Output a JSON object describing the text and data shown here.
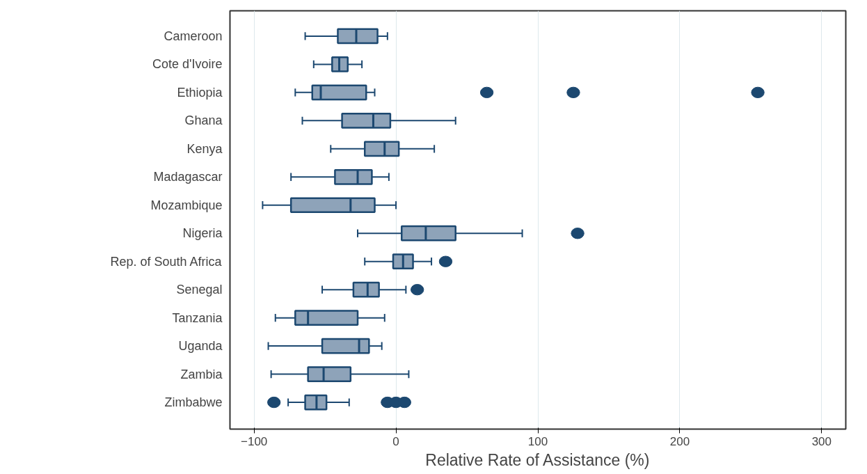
{
  "chart_data": {
    "type": "box",
    "orientation": "horizontal",
    "xlabel": "Relative Rate of Assistance (%)",
    "color": "#8ea3b9",
    "grid": "x",
    "categories": [
      "Cameroon",
      "Cote d'Ivoire",
      "Ethiopia",
      "Ghana",
      "Kenya",
      "Madagascar",
      "Mozambique",
      "Nigeria",
      "Rep. of South Africa",
      "Senegal",
      "Tanzania",
      "Uganda",
      "Zambia",
      "Zimbabwe"
    ],
    "boxes": [
      {
        "low": -64,
        "q1": -41,
        "median": -28,
        "q3": -13,
        "high": -6
      },
      {
        "low": -58,
        "q1": -45,
        "median": -40,
        "q3": -34,
        "high": -24
      },
      {
        "low": -71,
        "q1": -59,
        "median": -53,
        "q3": -21,
        "high": -15,
        "outliers": [
          64,
          125,
          255
        ]
      },
      {
        "low": -66,
        "q1": -38,
        "median": -16,
        "q3": -4,
        "high": 42
      },
      {
        "low": -46,
        "q1": -22,
        "median": -8,
        "q3": 2,
        "high": 27
      },
      {
        "low": -74,
        "q1": -43,
        "median": -27,
        "q3": -17,
        "high": -5
      },
      {
        "low": -94,
        "q1": -74,
        "median": -32,
        "q3": -15,
        "high": 0
      },
      {
        "low": -27,
        "q1": 4,
        "median": 21,
        "q3": 42,
        "high": 89,
        "outliers": [
          128
        ]
      },
      {
        "low": -22,
        "q1": -2,
        "median": 5,
        "q3": 12,
        "high": 25,
        "outliers": [
          35
        ]
      },
      {
        "low": -52,
        "q1": -30,
        "median": -20,
        "q3": -12,
        "high": 7,
        "outliers": [
          15
        ]
      },
      {
        "low": -85,
        "q1": -71,
        "median": -62,
        "q3": -27,
        "high": -8
      },
      {
        "low": -90,
        "q1": -52,
        "median": -26,
        "q3": -19,
        "high": -10
      },
      {
        "low": -88,
        "q1": -62,
        "median": -51,
        "q3": -32,
        "high": 9
      },
      {
        "low": -76,
        "q1": -64,
        "median": -56,
        "q3": -49,
        "high": -33,
        "outliers": [
          -86,
          -6,
          0,
          6
        ]
      }
    ],
    "xlim": [
      -117,
      317
    ],
    "xticks": [
      -100,
      0,
      100,
      200,
      300
    ]
  }
}
